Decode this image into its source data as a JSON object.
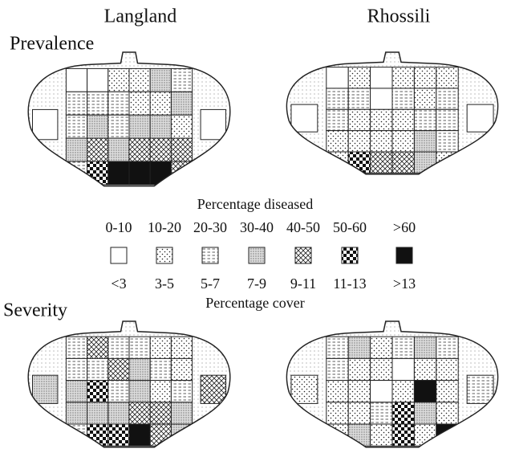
{
  "columns": [
    "Langland",
    "Rhossili"
  ],
  "rows": [
    "Prevalence",
    "Severity"
  ],
  "legend": {
    "title": "Percentage diseased",
    "diseased_labels": [
      "0-10",
      "10-20",
      "20-30",
      "30-40",
      "40-50",
      "50-60",
      ">60"
    ],
    "cover_labels": [
      "<3",
      "3-5",
      "5-7",
      "7-9",
      "9-11",
      "11-13",
      ">13"
    ],
    "cover_title": "Percentage cover"
  }
}
